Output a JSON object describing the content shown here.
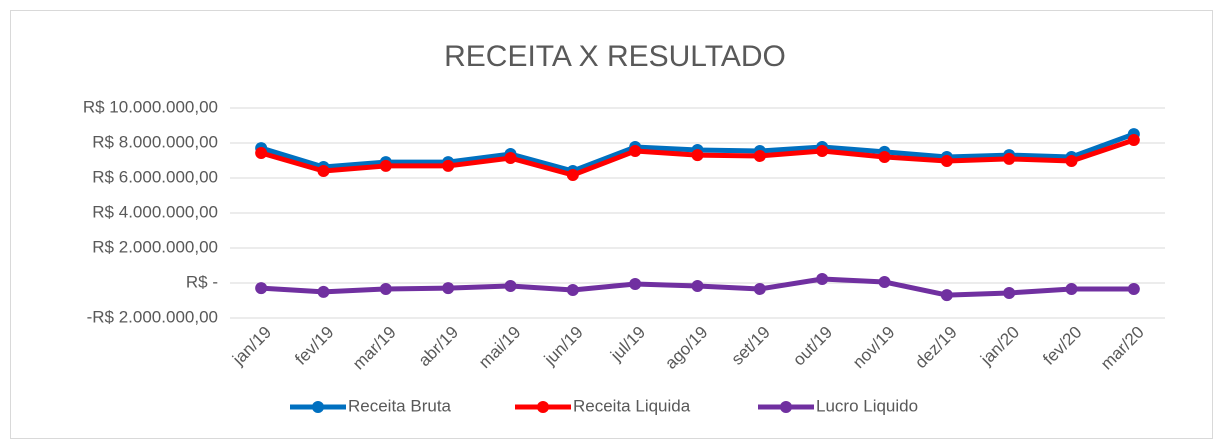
{
  "chart_data": {
    "type": "line",
    "title": "RECEITA X RESULTADO",
    "categories": [
      "jan/19",
      "fev/19",
      "mar/19",
      "abr/19",
      "mai/19",
      "jun/19",
      "jul/19",
      "ago/19",
      "set/19",
      "out/19",
      "nov/19",
      "dez/19",
      "jan/20",
      "fev/20",
      "mar/20"
    ],
    "series": [
      {
        "name": "Receita Bruta",
        "color": "#0070c0",
        "values": [
          7710000,
          6630000,
          6910000,
          6910000,
          7370000,
          6400000,
          7770000,
          7600000,
          7540000,
          7770000,
          7490000,
          7200000,
          7310000,
          7200000,
          8510000
        ]
      },
      {
        "name": "Receita Liquida",
        "color": "#ff0000",
        "values": [
          7430000,
          6400000,
          6690000,
          6690000,
          7140000,
          6170000,
          7540000,
          7310000,
          7260000,
          7540000,
          7200000,
          6970000,
          7090000,
          6970000,
          8170000
        ]
      },
      {
        "name": "Lucro Liquido",
        "color": "#7030a0",
        "values": [
          -290000,
          -510000,
          -340000,
          -290000,
          -170000,
          -400000,
          -60000,
          -170000,
          -340000,
          230000,
          60000,
          -690000,
          -570000,
          -340000,
          -340000
        ]
      }
    ],
    "ylim": [
      -2000000,
      10000000
    ],
    "yticks": [
      {
        "value": -2000000,
        "label": "-R$ 2.000.000,00"
      },
      {
        "value": 0,
        "label": "R$ -"
      },
      {
        "value": 2000000,
        "label": "R$ 2.000.000,00"
      },
      {
        "value": 4000000,
        "label": "R$ 4.000.000,00"
      },
      {
        "value": 6000000,
        "label": "R$ 6.000.000,00"
      },
      {
        "value": 8000000,
        "label": "R$ 8.000.000,00"
      },
      {
        "value": 10000000,
        "label": "R$ 10.000.000,00"
      }
    ],
    "grid": true,
    "legend": "bottom"
  }
}
